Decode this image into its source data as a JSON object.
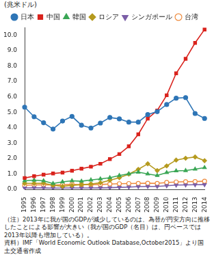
{
  "chart_data": {
    "type": "line",
    "y_label": "(兆米ドル)",
    "categories": [
      "1995",
      "1996",
      "1997",
      "1998",
      "1999",
      "2000",
      "2001",
      "2002",
      "2003",
      "2004",
      "2005",
      "2006",
      "2007",
      "2008",
      "2009",
      "2010",
      "2011",
      "2012",
      "2013",
      "2014"
    ],
    "series": [
      {
        "name": "日本",
        "color": "#2e75b6",
        "marker": "circle",
        "values": [
          5.33,
          4.71,
          4.32,
          3.91,
          4.43,
          4.73,
          4.16,
          3.98,
          4.3,
          4.66,
          4.57,
          4.36,
          4.36,
          4.85,
          5.04,
          5.5,
          5.91,
          5.95,
          4.92,
          4.6
        ]
      },
      {
        "name": "中国",
        "color": "#d9231d",
        "marker": "square",
        "values": [
          0.74,
          0.86,
          0.96,
          1.03,
          1.09,
          1.21,
          1.34,
          1.47,
          1.66,
          1.96,
          2.29,
          2.79,
          3.57,
          4.59,
          5.11,
          6.1,
          7.52,
          8.46,
          9.49,
          10.36
        ]
      },
      {
        "name": "韓国",
        "color": "#3aa655",
        "marker": "triangle",
        "values": [
          0.56,
          0.6,
          0.56,
          0.38,
          0.49,
          0.56,
          0.53,
          0.61,
          0.68,
          0.76,
          0.9,
          1.01,
          1.12,
          1.0,
          0.9,
          1.09,
          1.2,
          1.22,
          1.31,
          1.41
        ]
      },
      {
        "name": "ロシア",
        "color": "#b59a1e",
        "marker": "diamond",
        "values": [
          0.39,
          0.39,
          0.4,
          0.27,
          0.2,
          0.26,
          0.31,
          0.35,
          0.43,
          0.59,
          0.76,
          0.99,
          1.3,
          1.66,
          1.22,
          1.52,
          1.9,
          2.02,
          2.1,
          1.86
        ]
      },
      {
        "name": "シンガポール",
        "color": "#7b5ea7",
        "marker": "triangle-down",
        "values": [
          0.09,
          0.1,
          0.1,
          0.08,
          0.09,
          0.09,
          0.09,
          0.09,
          0.1,
          0.11,
          0.13,
          0.15,
          0.18,
          0.19,
          0.19,
          0.24,
          0.28,
          0.29,
          0.3,
          0.31
        ]
      },
      {
        "name": "台湾",
        "color": "#ee8a3c",
        "marker": "circle-open",
        "values": [
          0.27,
          0.29,
          0.3,
          0.28,
          0.3,
          0.33,
          0.3,
          0.31,
          0.32,
          0.35,
          0.37,
          0.38,
          0.39,
          0.4,
          0.39,
          0.45,
          0.48,
          0.5,
          0.51,
          0.53
        ]
      }
    ],
    "ylim": [
      0,
      10.5
    ],
    "yticks": [
      {
        "value": 0,
        "label": "0.0"
      },
      {
        "value": 1,
        "label": "1.0"
      },
      {
        "value": 2,
        "label": "2.0"
      },
      {
        "value": 3,
        "label": "3.0"
      },
      {
        "value": 4,
        "label": "4.0"
      },
      {
        "value": 5,
        "label": "5.0"
      },
      {
        "value": 6,
        "label": "6.0"
      },
      {
        "value": 7,
        "label": "7.0"
      },
      {
        "value": 8,
        "label": "8.0"
      },
      {
        "value": 9,
        "label": "9.0"
      },
      {
        "value": 10,
        "label": "10.0"
      }
    ],
    "grid": false,
    "legend": "top",
    "annotations": [
      "（注）2013年に我が国のGDPが減少しているのは、為替が円安方向に推移したことによる影響が大きい（我が国のGDP（名目）は、円ベースでは2013年以降も増加している）。",
      "資料）IMF「World Economic Outlook Database,October2015」より国土交通省作成"
    ]
  }
}
